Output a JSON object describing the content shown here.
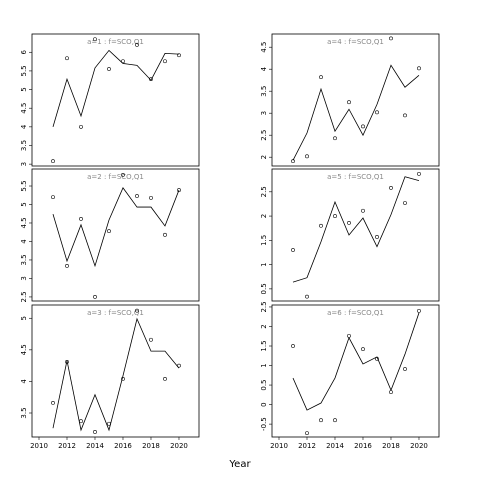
{
  "xlabel": "Year",
  "chart_data": [
    {
      "type": "line",
      "title": "a=1 : f=SCO,Q1",
      "x": [
        2011,
        2012,
        2013,
        2014,
        2015,
        2016,
        2017,
        2018,
        2019,
        2020
      ],
      "observed": [
        3.08,
        5.84,
        4.0,
        6.35,
        5.55,
        5.76,
        6.2,
        5.28,
        5.76,
        5.92
      ],
      "fitted": [
        4.0,
        5.28,
        4.29,
        5.58,
        6.05,
        5.7,
        5.65,
        5.25,
        5.97,
        5.95
      ],
      "xlim": [
        2009.5,
        2021.43
      ],
      "ylim": [
        2.95,
        6.49
      ],
      "yticks": [
        3.0,
        3.5,
        4.0,
        4.5,
        5.0,
        5.5,
        6.0
      ]
    },
    {
      "type": "line",
      "title": "a=2 : f=SCO,Q1",
      "x": [
        2011,
        2012,
        2013,
        2014,
        2015,
        2016,
        2017,
        2018,
        2019,
        2020
      ],
      "observed": [
        5.2,
        3.34,
        4.61,
        2.5,
        4.28,
        5.8,
        5.23,
        5.18,
        4.18,
        5.39
      ],
      "fitted": [
        4.74,
        3.47,
        4.45,
        3.34,
        4.58,
        5.45,
        4.93,
        4.93,
        4.42,
        5.39
      ],
      "xlim": [
        2009.5,
        2021.43
      ],
      "ylim": [
        2.39,
        5.96
      ],
      "yticks": [
        2.5,
        3.0,
        3.5,
        4.0,
        4.5,
        5.0,
        5.5
      ]
    },
    {
      "type": "line",
      "title": "a=3 : f=SCO,Q1",
      "x": [
        2011,
        2012,
        2013,
        2014,
        2015,
        2016,
        2017,
        2018,
        2019,
        2020
      ],
      "observed": [
        3.66,
        4.31,
        3.37,
        3.2,
        3.33,
        4.04,
        5.12,
        4.66,
        4.04,
        4.25
      ],
      "fitted": [
        3.26,
        4.33,
        3.23,
        3.79,
        3.23,
        4.09,
        4.99,
        4.48,
        4.48,
        4.21
      ],
      "xlim": [
        2009.5,
        2021.43
      ],
      "ylim": [
        3.12,
        5.21
      ],
      "yticks": [
        3.5,
        4.0,
        4.5,
        5.0
      ],
      "xticks": [
        2010,
        2012,
        2014,
        2016,
        2018,
        2020
      ]
    },
    {
      "type": "line",
      "title": "a=4 : f=SCO,Q1",
      "x": [
        2011,
        2012,
        2013,
        2014,
        2015,
        2016,
        2017,
        2018,
        2019,
        2020
      ],
      "observed": [
        1.91,
        2.02,
        3.82,
        2.43,
        3.25,
        2.7,
        3.02,
        4.7,
        2.95,
        4.02
      ],
      "fitted": [
        1.93,
        2.55,
        3.55,
        2.59,
        3.09,
        2.5,
        3.2,
        4.09,
        3.59,
        3.86
      ],
      "xlim": [
        2009.5,
        2021.43
      ],
      "ylim": [
        1.8,
        4.8
      ],
      "yticks": [
        2.0,
        2.5,
        3.0,
        3.5,
        4.0,
        4.5
      ]
    },
    {
      "type": "line",
      "title": "a=5 : f=SCO,Q1",
      "x": [
        2011,
        2012,
        2013,
        2014,
        2015,
        2016,
        2017,
        2018,
        2019,
        2020
      ],
      "observed": [
        1.3,
        0.34,
        1.8,
        2.0,
        1.86,
        2.11,
        1.57,
        2.58,
        2.27,
        2.87
      ],
      "fitted": [
        0.64,
        0.73,
        1.47,
        2.29,
        1.61,
        1.96,
        1.37,
        2.03,
        2.81,
        2.73
      ],
      "xlim": [
        2009.5,
        2021.43
      ],
      "ylim": [
        0.25,
        2.97
      ],
      "yticks": [
        0.5,
        1.0,
        1.5,
        2.0,
        2.5
      ]
    },
    {
      "type": "line",
      "title": "a=6 : f=SCO,Q1",
      "x": [
        2011,
        2012,
        2013,
        2014,
        2015,
        2016,
        2017,
        2018,
        2019,
        2020
      ],
      "observed": [
        1.5,
        -0.73,
        -0.4,
        -0.4,
        1.76,
        1.42,
        1.17,
        0.32,
        0.91,
        2.4
      ],
      "fitted": [
        0.68,
        -0.14,
        0.04,
        0.68,
        1.71,
        1.04,
        1.22,
        0.37,
        1.29,
        2.35
      ],
      "xlim": [
        2009.5,
        2021.43
      ],
      "ylim": [
        -0.83,
        2.55
      ],
      "yticks": [
        -0.5,
        0.0,
        0.5,
        1.0,
        1.5,
        2.0,
        2.5
      ],
      "xticks": [
        2010,
        2012,
        2014,
        2016,
        2018,
        2020
      ]
    }
  ]
}
